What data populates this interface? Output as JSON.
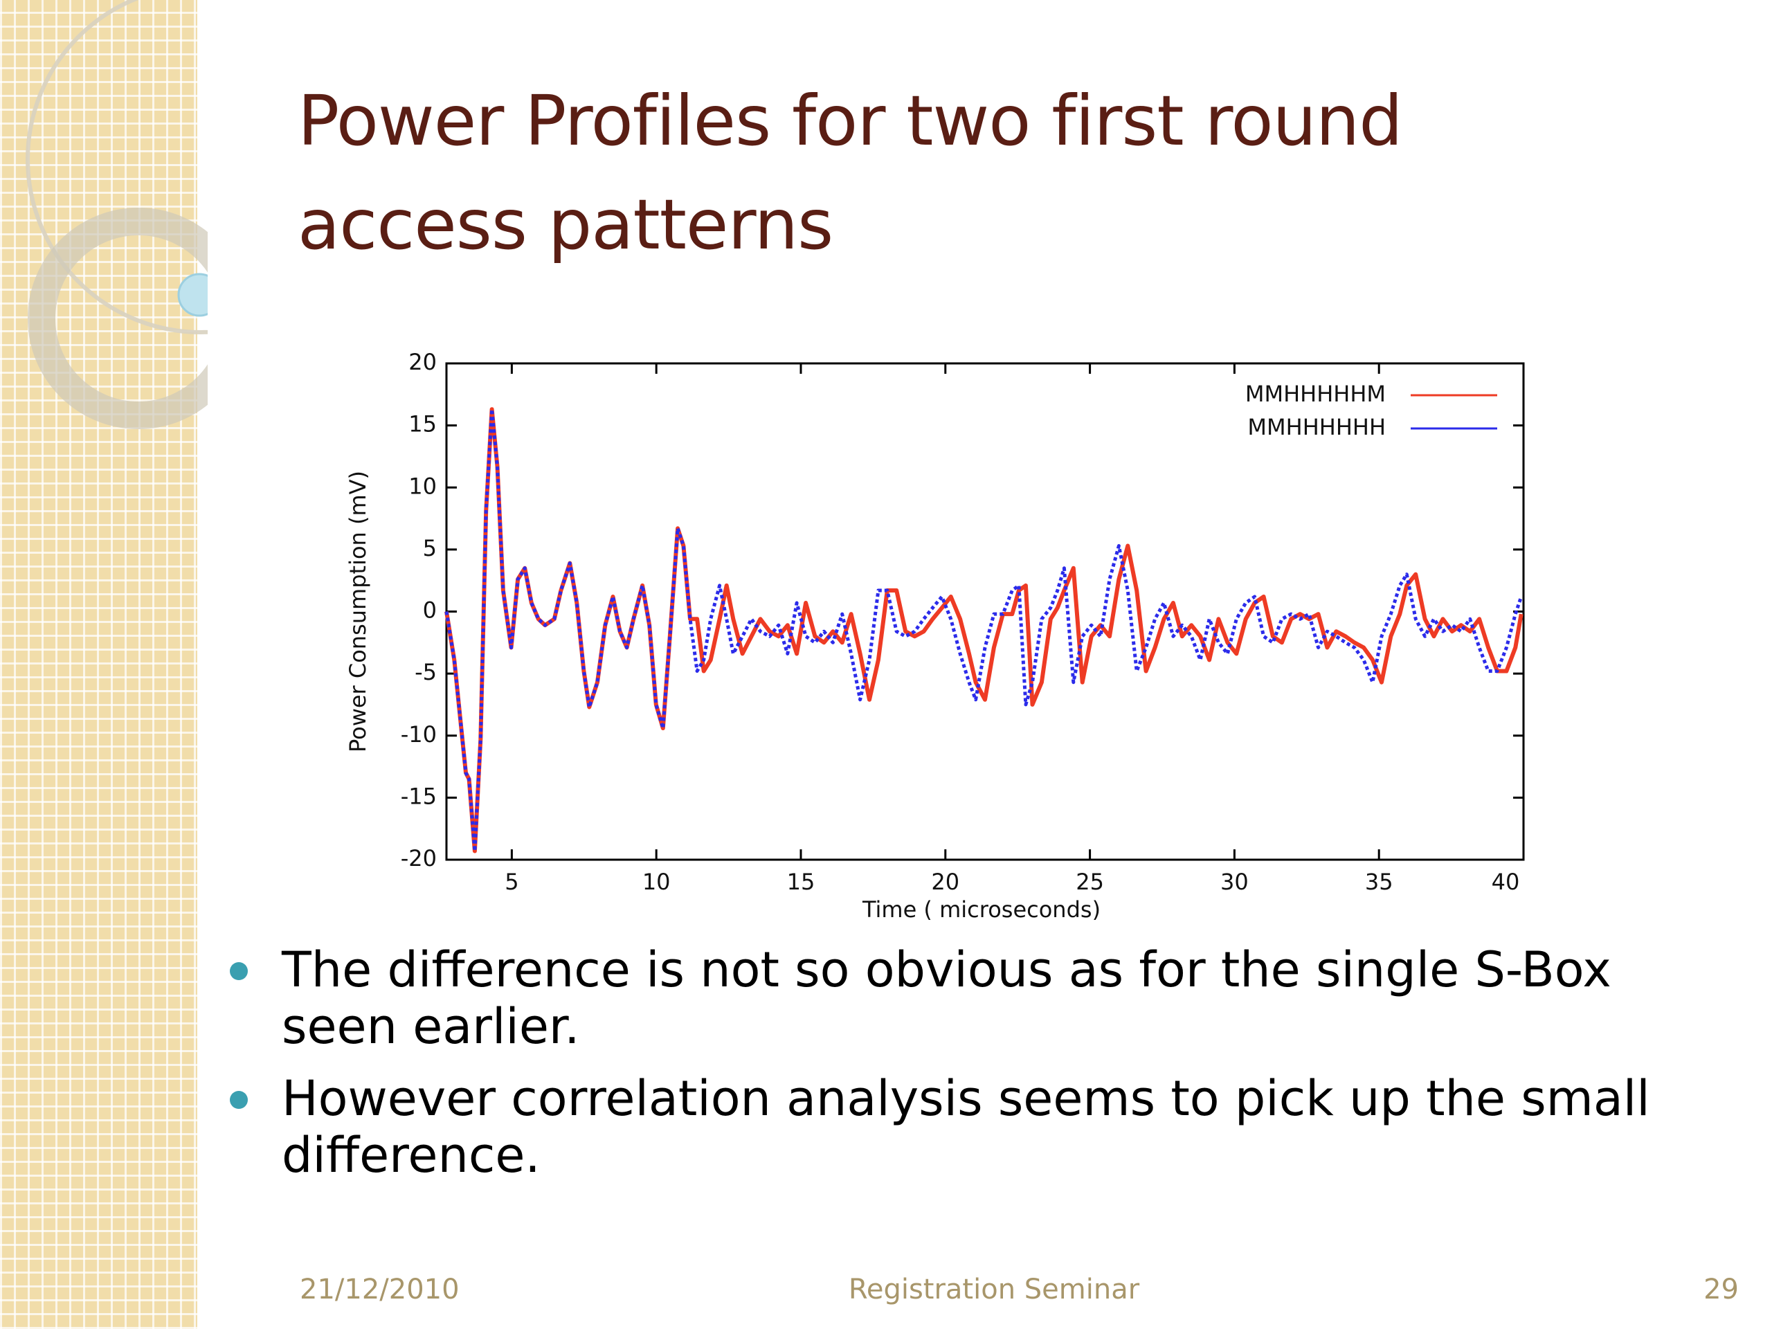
{
  "slide": {
    "title": "Power Profiles for two first round access patterns",
    "bullets": [
      "The difference is not so obvious as for the single S-Box seen earlier.",
      "However correlation analysis seems to pick up the small difference."
    ],
    "footer": {
      "date": "21/12/2010",
      "center": "Registration Seminar",
      "page": "29"
    }
  },
  "chart_data": {
    "type": "line",
    "xlabel": "Time ( microseconds)",
    "ylabel": "Power Consumption (mV)",
    "xlim": [
      2.74,
      40
    ],
    "ylim": [
      -20,
      20
    ],
    "xticks": [
      5,
      10,
      15,
      20,
      25,
      30,
      35,
      40
    ],
    "yticks": [
      -20,
      -15,
      -10,
      -5,
      0,
      5,
      10,
      15,
      20
    ],
    "legend": "upper right",
    "x": [
      2.74,
      3.01,
      3.29,
      3.41,
      3.52,
      3.72,
      3.92,
      4.11,
      4.31,
      4.5,
      4.7,
      4.98,
      5.21,
      5.45,
      5.68,
      5.92,
      6.15,
      6.47,
      6.7,
      7.01,
      7.25,
      7.49,
      7.68,
      7.96,
      8.23,
      8.5,
      8.74,
      8.98,
      9.21,
      9.52,
      9.76,
      9.99,
      10.23,
      10.47,
      10.74,
      10.94,
      11.17,
      11.41,
      11.64,
      11.88,
      12.19,
      12.43,
      12.66,
      12.98,
      13.29,
      13.6,
      13.92,
      14.23,
      14.54,
      14.86,
      15.17,
      15.49,
      15.8,
      16.11,
      16.43,
      16.74,
      17.05,
      17.37,
      17.68,
      17.99,
      18.31,
      18.62,
      18.94,
      19.25,
      19.56,
      19.88,
      20.19,
      20.51,
      20.82,
      21.05,
      21.37,
      21.68,
      21.99,
      22.31,
      22.54,
      22.78,
      23.01,
      23.33,
      23.64,
      23.88,
      24.11,
      24.43,
      24.74,
      25.05,
      25.37,
      25.68,
      26.0,
      26.31,
      26.62,
      26.94,
      27.25,
      27.56,
      27.88,
      28.19,
      28.51,
      28.82,
      29.13,
      29.45,
      29.76,
      30.07,
      30.39,
      30.7,
      31.01,
      31.33,
      31.64,
      31.96,
      32.27,
      32.58,
      32.9,
      33.21,
      33.52,
      33.84,
      34.15,
      34.47,
      34.78,
      35.09,
      35.41,
      35.72,
      35.96,
      36.27,
      36.59,
      36.9,
      37.21,
      37.53,
      37.84,
      38.15,
      38.47,
      38.78,
      39.09,
      39.41,
      39.72,
      39.92
    ],
    "series": [
      {
        "name": "MMHHHHHM",
        "color": "#ee3b24",
        "values": [
          0,
          -3.9,
          -10.3,
          -13,
          -13.5,
          -19.3,
          -10.3,
          8.1,
          16.3,
          11.7,
          1.7,
          -2.9,
          2.6,
          3.5,
          0.7,
          -0.6,
          -1.1,
          -0.6,
          1.7,
          3.9,
          0.7,
          -4.8,
          -7.7,
          -5.7,
          -1.1,
          1.2,
          -1.6,
          -2.9,
          -0.6,
          2.1,
          -1.1,
          -7.5,
          -9.4,
          -2,
          6.7,
          5.3,
          -0.6,
          -0.6,
          -4.8,
          -3.9,
          -0.6,
          2.1,
          -0.6,
          -3.4,
          -2,
          -0.6,
          -1.6,
          -2,
          -1.1,
          -3.4,
          0.7,
          -2,
          -2.5,
          -1.6,
          -2.5,
          -0.2,
          -3.4,
          -7.1,
          -3.9,
          1.7,
          1.7,
          -1.6,
          -2,
          -1.6,
          -0.6,
          0.3,
          1.2,
          -0.6,
          -3.4,
          -5.7,
          -7.1,
          -2.9,
          -0.2,
          -0.2,
          1.7,
          2.1,
          -7.5,
          -5.7,
          -0.6,
          0.3,
          1.7,
          3.5,
          -5.7,
          -2,
          -1.1,
          -2,
          2.6,
          5.3,
          1.7,
          -4.8,
          -2.9,
          -0.6,
          0.7,
          -2,
          -1.1,
          -2,
          -3.9,
          -0.6,
          -2.5,
          -3.4,
          -0.6,
          0.7,
          1.2,
          -2,
          -2.5,
          -0.6,
          -0.2,
          -0.6,
          -0.2,
          -2.9,
          -1.6,
          -2,
          -2.5,
          -2.9,
          -3.9,
          -5.7,
          -2,
          -0.2,
          2.1,
          3,
          -0.6,
          -2,
          -0.6,
          -1.6,
          -1.1,
          -1.6,
          -0.6,
          -2.9,
          -4.8,
          -4.8,
          -2.9,
          -0.2
        ]
      },
      {
        "name": "MMHHHHHH",
        "color": "#2b2bea",
        "values": [
          0,
          -3.9,
          -10.3,
          -13,
          -13.5,
          -19.3,
          -10.3,
          8.1,
          16.3,
          11.7,
          1.7,
          -2.9,
          2.6,
          3.5,
          0.7,
          -0.6,
          -1.1,
          -0.6,
          1.7,
          3.9,
          0.7,
          -4.8,
          -7.7,
          -5.7,
          -1.1,
          1.2,
          -1.6,
          -2.9,
          -0.6,
          2.1,
          -1.1,
          -7.5,
          -9.4,
          -2,
          6.7,
          5.3,
          -0.6,
          -4.8,
          -3.9,
          -0.6,
          2.1,
          -0.6,
          -3.4,
          -2,
          -0.6,
          -1.6,
          -2,
          -1.1,
          -3.4,
          0.7,
          -2,
          -2.5,
          -1.6,
          -2.5,
          -0.2,
          -3.4,
          -7.1,
          -3.9,
          1.7,
          1.7,
          -1.6,
          -2,
          -1.6,
          -0.6,
          0.3,
          1.2,
          -0.6,
          -3.4,
          -5.7,
          -7.1,
          -2.9,
          -0.2,
          -0.2,
          1.7,
          2.1,
          -7.5,
          -5.7,
          -0.6,
          0.3,
          1.7,
          3.5,
          -5.7,
          -2,
          -1.1,
          -2,
          2.6,
          5.3,
          1.7,
          -4.8,
          -2.9,
          -0.6,
          0.7,
          -2,
          -1.1,
          -2,
          -3.9,
          -0.6,
          -2.5,
          -3.4,
          -0.6,
          0.7,
          1.2,
          -2,
          -2.5,
          -0.6,
          -0.2,
          -0.6,
          -0.2,
          -2.9,
          -1.6,
          -2,
          -2.5,
          -2.9,
          -3.9,
          -5.7,
          -2,
          -0.2,
          2.1,
          3,
          -0.6,
          -2,
          -0.6,
          -1.6,
          -1.1,
          -1.6,
          -0.6,
          -2.9,
          -4.8,
          -4.8,
          -2.9,
          -0.2,
          1.2
        ]
      }
    ]
  }
}
